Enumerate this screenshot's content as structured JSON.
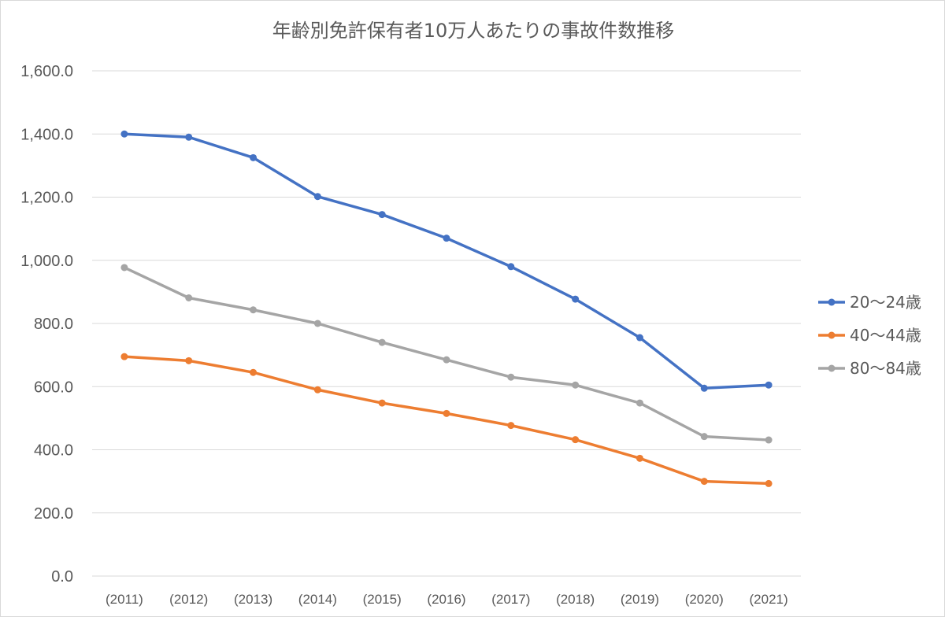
{
  "chart_data": {
    "type": "line",
    "title": "年齢別免許保有者10万人あたりの事故件数推移",
    "xlabel": "",
    "ylabel": "",
    "categories": [
      "(2011)",
      "(2012)",
      "(2013)",
      "(2014)",
      "(2015)",
      "(2016)",
      "(2017)",
      "(2018)",
      "(2019)",
      "(2020)",
      "(2021)"
    ],
    "ylim": [
      0,
      1600
    ],
    "yticks": [
      "0.0",
      "200.0",
      "400.0",
      "600.0",
      "800.0",
      "1,000.0",
      "1,200.0",
      "1,400.0",
      "1,600.0"
    ],
    "grid": true,
    "legend_position": "right",
    "series": [
      {
        "name": "20～24歳",
        "color": "#4472c4",
        "values": [
          1400,
          1390,
          1325,
          1202,
          1145,
          1070,
          980,
          877,
          755,
          595,
          605
        ]
      },
      {
        "name": "40～44歳",
        "color": "#ed7d31",
        "values": [
          695,
          682,
          645,
          590,
          548,
          515,
          477,
          432,
          373,
          300,
          293
        ]
      },
      {
        "name": "80～84歳",
        "color": "#a5a5a5",
        "values": [
          977,
          881,
          843,
          800,
          740,
          685,
          630,
          605,
          548,
          442,
          431
        ]
      }
    ]
  }
}
